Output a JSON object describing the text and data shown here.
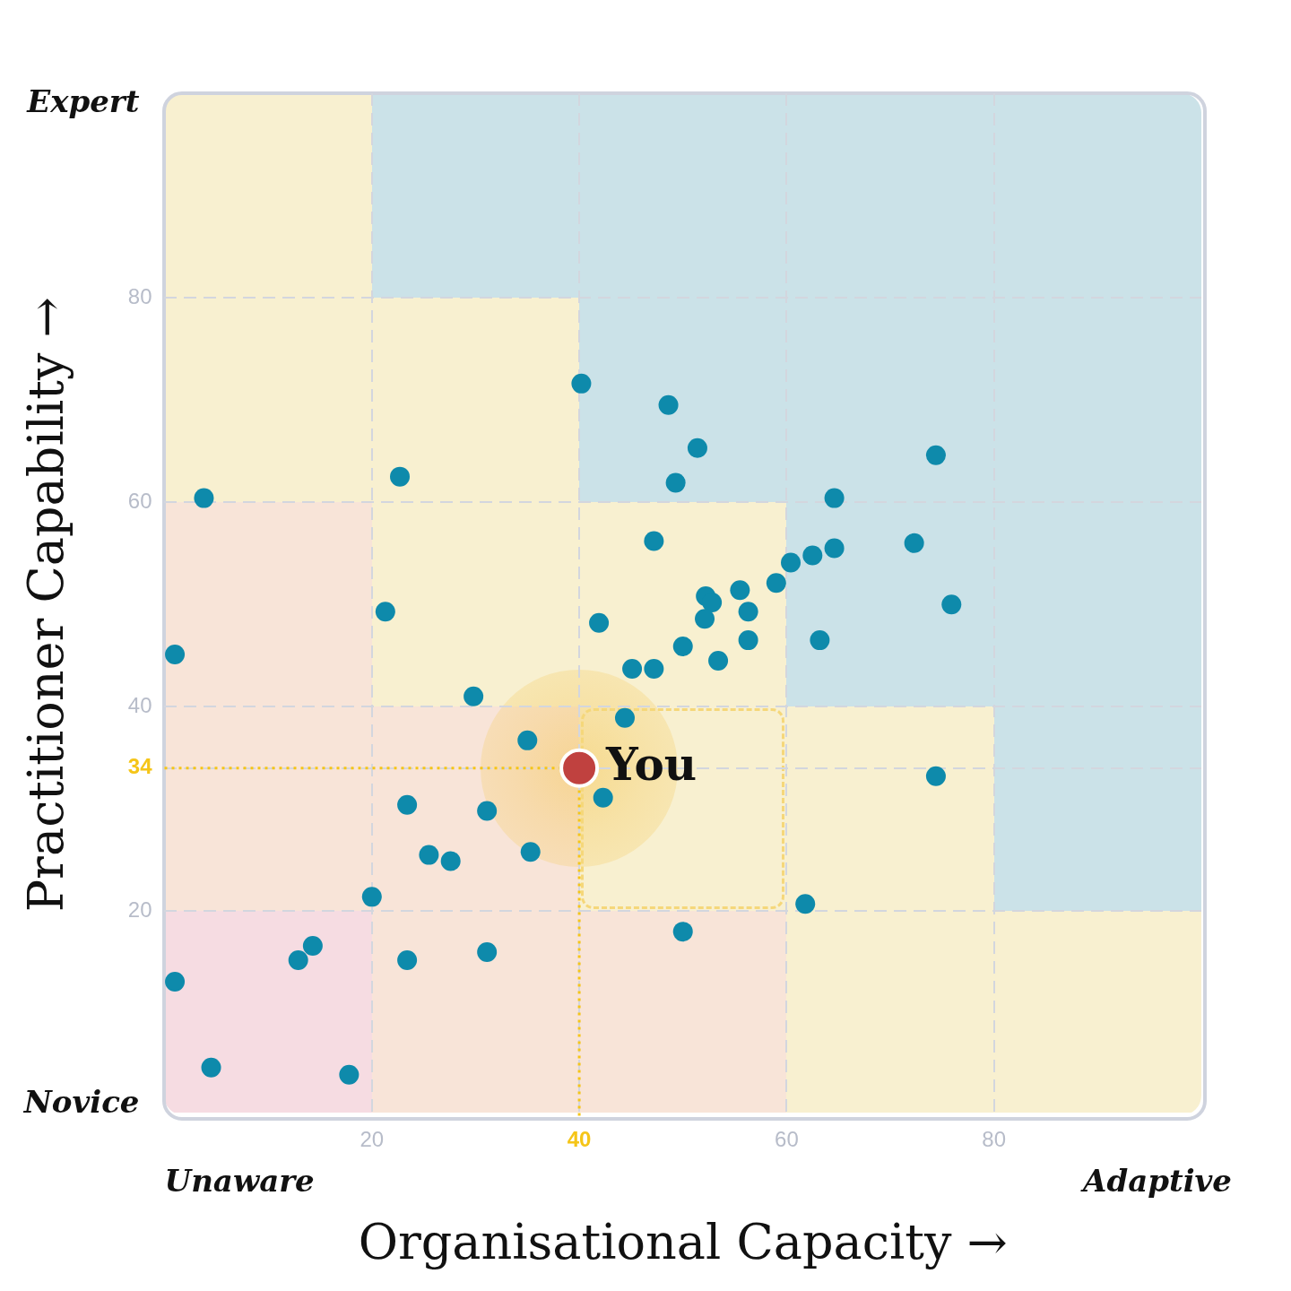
{
  "chart_data": {
    "type": "scatter",
    "xlabel": "Organisational Capacity →",
    "ylabel": "Practitioner Capability →",
    "annotations": [
      "Expert",
      "Novice",
      "Unaware",
      "Adaptive"
    ],
    "xlim": [
      0,
      100
    ],
    "ylim": [
      0,
      100
    ],
    "xticks": [
      20,
      40,
      60,
      80
    ],
    "yticks": [
      20,
      34,
      40,
      60,
      80
    ],
    "grid": true,
    "legend": false,
    "marker": "circle",
    "ref_lines": [
      {
        "axis": "x",
        "value": 40,
        "color": "#f5c518",
        "line_style": "dotted"
      },
      {
        "axis": "y",
        "value": 34,
        "color": "#f5c518",
        "line_style": "dotted"
      }
    ],
    "series": [
      {
        "color": "#0e8aab",
        "x": [
          40.2,
          48.6,
          51.4,
          49.3,
          74.4,
          22.7,
          3.8,
          64.6,
          47.2,
          72.3,
          64.6,
          62.5,
          60.4,
          59.0,
          55.5,
          52.2,
          52.8,
          56.3,
          52.1,
          75.9,
          21.3,
          41.9,
          50.0,
          56.3,
          63.2,
          53.4,
          45.1,
          47.2,
          1.0,
          29.8,
          44.4,
          35.0,
          42.3,
          74.4,
          23.4,
          31.1,
          25.5,
          27.6,
          35.3,
          20.0,
          61.8,
          50.0,
          14.3,
          12.9,
          23.4,
          31.1,
          1.0,
          4.5,
          17.8
        ],
        "values": [
          71.6,
          69.5,
          65.3,
          61.9,
          64.6,
          62.5,
          60.4,
          60.4,
          56.2,
          56.0,
          55.5,
          54.8,
          54.1,
          52.1,
          51.4,
          50.8,
          50.2,
          49.3,
          48.6,
          50.0,
          49.3,
          48.2,
          45.9,
          46.5,
          46.5,
          44.5,
          43.7,
          43.7,
          45.1,
          41.0,
          38.9,
          36.7,
          31.1,
          33.2,
          30.4,
          29.8,
          25.5,
          24.9,
          25.8,
          21.4,
          20.7,
          18.0,
          16.6,
          15.2,
          15.2,
          16.0,
          13.1,
          4.7,
          4.0
        ]
      },
      {
        "name": "You",
        "color": "#c0413f",
        "x": [
          40
        ],
        "values": [
          34
        ]
      }
    ]
  }
}
